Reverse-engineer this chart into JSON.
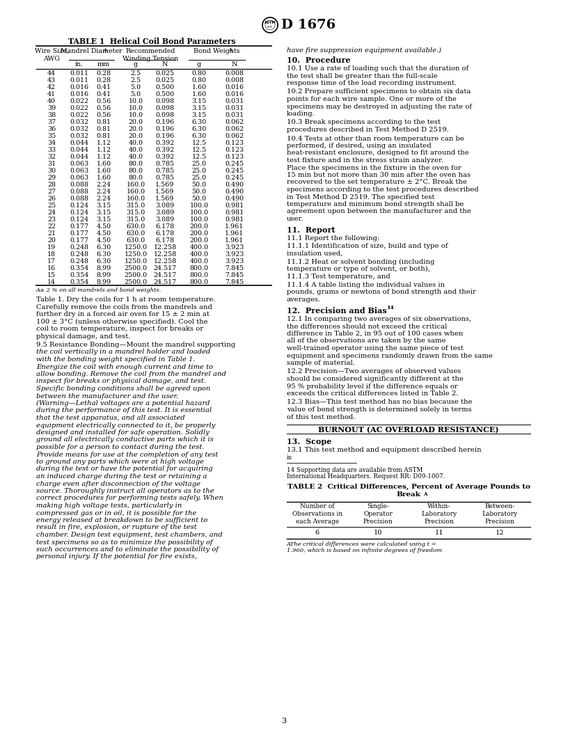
{
  "page_number": "3",
  "table1_title": "TABLE 1  Helical Coil Bond Parameters",
  "table1_data": [
    [
      44,
      0.011,
      0.28,
      2.5,
      0.025,
      0.8,
      0.008
    ],
    [
      43,
      0.011,
      0.28,
      2.5,
      0.025,
      0.8,
      0.008
    ],
    [
      42,
      0.016,
      0.41,
      5.0,
      0.5,
      1.6,
      0.016
    ],
    [
      41,
      0.016,
      0.41,
      5.0,
      0.5,
      1.6,
      0.016
    ],
    [
      40,
      0.022,
      0.56,
      10.0,
      0.098,
      3.15,
      0.031
    ],
    [
      39,
      0.022,
      0.56,
      10.0,
      0.098,
      3.15,
      0.031
    ],
    [
      38,
      0.022,
      0.56,
      10.0,
      0.098,
      3.15,
      0.031
    ],
    [
      37,
      0.032,
      0.81,
      20.0,
      0.196,
      6.3,
      0.062
    ],
    [
      36,
      0.032,
      0.81,
      20.0,
      0.196,
      6.3,
      0.062
    ],
    [
      35,
      0.032,
      0.81,
      20.0,
      0.196,
      6.3,
      0.062
    ],
    [
      34,
      0.044,
      1.12,
      40.0,
      0.392,
      12.5,
      0.123
    ],
    [
      33,
      0.044,
      1.12,
      40.0,
      0.392,
      12.5,
      0.123
    ],
    [
      32,
      0.044,
      1.12,
      40.0,
      0.392,
      12.5,
      0.123
    ],
    [
      31,
      0.063,
      1.6,
      80.0,
      0.785,
      25.0,
      0.245
    ],
    [
      30,
      0.063,
      1.6,
      80.0,
      0.785,
      25.0,
      0.245
    ],
    [
      29,
      0.063,
      1.6,
      80.0,
      0.785,
      25.0,
      0.245
    ],
    [
      28,
      0.088,
      2.24,
      160.0,
      1.569,
      50.0,
      0.49
    ],
    [
      27,
      0.088,
      2.24,
      160.0,
      1.569,
      50.0,
      0.49
    ],
    [
      26,
      0.088,
      2.24,
      160.0,
      1.569,
      50.0,
      0.49
    ],
    [
      25,
      0.124,
      3.15,
      315.0,
      3.089,
      100.0,
      0.981
    ],
    [
      24,
      0.124,
      3.15,
      315.0,
      3.089,
      100.0,
      0.981
    ],
    [
      23,
      0.124,
      3.15,
      315.0,
      3.089,
      100.0,
      0.981
    ],
    [
      22,
      0.177,
      4.5,
      630.0,
      6.178,
      200.0,
      1.961
    ],
    [
      21,
      0.177,
      4.5,
      630.0,
      6.178,
      200.0,
      1.961
    ],
    [
      20,
      0.177,
      4.5,
      630.0,
      6.178,
      200.0,
      1.961
    ],
    [
      19,
      0.248,
      6.3,
      1250.0,
      12.258,
      400.0,
      3.923
    ],
    [
      18,
      0.248,
      6.3,
      1250.0,
      12.258,
      400.0,
      3.923
    ],
    [
      17,
      0.248,
      6.3,
      1250.0,
      12.258,
      400.0,
      3.923
    ],
    [
      16,
      0.354,
      8.99,
      2500.0,
      24.517,
      800.0,
      7.845
    ],
    [
      15,
      0.354,
      8.99,
      2500.0,
      24.517,
      800.0,
      7.845
    ],
    [
      14,
      0.354,
      8.99,
      2500.0,
      24.517,
      800.0,
      7.845
    ]
  ],
  "table1_footnote": "A± 2 % on all mandrels and bond weights.",
  "left_col_para1": "Table 1. Dry the coils for 1 h at room temperature. Carefully remove the coils from the mandrels and further dry in a forced air oven for 15 ± 2 min at 100 ± 3°C (unless otherwise specified). Cool the coil to room temperature, inspect for breaks or physical damage, and test.",
  "left_col_para2_pre": "    9.5 ",
  "left_col_para2_italic_label": "Resistance Bonding",
  "left_col_para2_rest": "—Mount the mandrel supporting the coil vertically in a mandrel holder and loaded with the bonding weight specified in Table 1. Energize the coil with enough current and time to allow bonding. Remove the coil from the mandrel and inspect for breaks or physical damage, and test. Specific bonding conditions shall be agreed upon between the manufacturer and the user. (",
  "left_col_warning_label": "Warning",
  "left_col_warning_rest": "—Lethal voltages are a potential hazard during the performance of this test. It is essential that the test apparatus, and all associated equipment electrically connected to it, be properly designed and installed for safe operation. Solidly ground all electrically conductive parts which it is possible for a person to contact during the test. Provide means for use at the completion of any test to ground any parts which were at high voltage during the test or have the potential for acquiring an induced charge during the test or retaining a charge even after disconnection of the voltage source. Thoroughly instruct all operators as to the correct procedures for performing tests safely. When making high voltage tests, particularly in compressed gas or in oil, it is possible for the energy released at breakdown to be sufficient to result in fire, explosion, or rupture of the test chamber. Design test equipment, test chambers, and test specimens so as to minimize the possibility of such occurrences and to eliminate the possibility of personal injury. If the potential for fire exists,",
  "right_top_italic": "have fire suppression equipment available.)",
  "sec10_head": "10.  Procedure",
  "sec10_101": "10.1  Use a rate of loading such that the duration of the test shall be greater than the full-scale response time of the load recording instrument.",
  "sec10_102": "10.2  Prepare sufficient specimens to obtain six data points for each wire sample. One or more of the specimens may be destroyed in adjusting the rate of loading.",
  "sec10_103": "10.3  Break specimens according to the test procedures described in Test Method D 2519.",
  "sec10_104": "10.4  Tests at other than room temperature can be performed, if desired, using an insulated heat-resistant enclosure, designed to fit around the test fixture and in the stress strain analyzer. Place the specimens in the fixture in the oven for 15 min but not more than 30 min after the oven has recovered to the set temperature ± 2°C. Break the specimens according to the test procedures described in Test Method D 2519. The specified test temperature and minimum bond strength shall be agreement upon between the manufacturer and the user.",
  "sec11_head": "11.  Report",
  "sec11_111": "11.1  Report the following:",
  "sec11_1111": "11.1.1  Identification of size, build and type of insulation used,",
  "sec11_1112": "11.1.2  Heat or solvent bonding (including temperature or type of solvent, or both),",
  "sec11_1113": "11.1.3  Test temperature, and",
  "sec11_1114": "11.1.4  A table listing the individual values in pounds, grams or newtons of bond strength and their averages.",
  "sec12_head": "12.  Precision and Bias ",
  "sec12_sup": "14",
  "sec12_121": "12.1  In comparing two averages of six observations, the differences should not exceed the critical difference in Table 2, in 95 out of 100 cases when all of the observations are taken by the same well-trained operator using the same piece of test equipment and specimens randomly drawn from the same sample of material.",
  "sec12_122": "12.2  Precision—Two averages of observed values should be considered significantly different at the 95 % probability level if the difference equals or exceeds the critical differences listed in Table 2.",
  "sec12_123": "12.3  Bias—This test method has no bias because the value of bond strength is determined solely in terms of this test method.",
  "burnout_head": "BURNOUT (AC OVERLOAD RESISTANCE)",
  "sec13_head": "13.  Scope",
  "sec13_131": "13.1  This test method and equipment described herein is",
  "fn14": "14 Supporting data are available from ASTM International Headquarters. Request RR: D09-1007.",
  "table2_title": "TABLE 2  Critical Differences, Percent of Average Pounds to Break",
  "table2_title_sup": "A",
  "table2_headers": [
    "Number of\nObservations in\neach Average",
    "Single-\nOperator\nPrecision",
    "Within-\nLaboratory\nPrecision",
    "Between-\nLaboratory\nPrecision"
  ],
  "table2_data": [
    "6",
    "10",
    "11",
    "12"
  ],
  "table2_fn": "AThe critical differences were calculated using t = 1.960, which is based on infinite degrees of freedom",
  "bg": "#ffffff"
}
